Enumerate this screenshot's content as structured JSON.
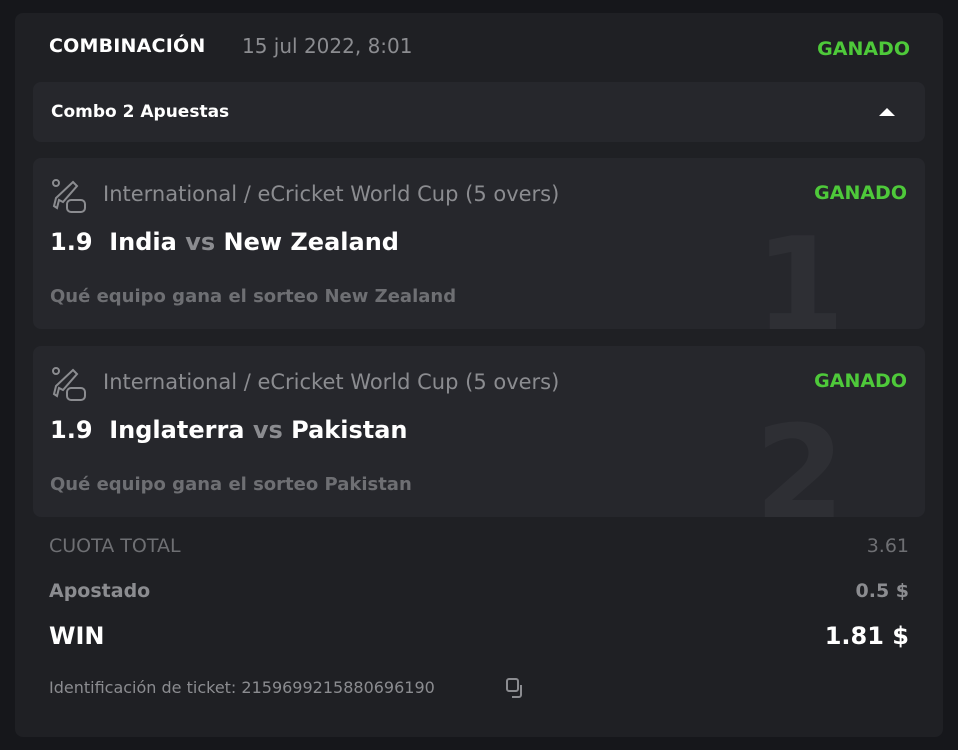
{
  "header": {
    "title": "COMBINACIÓN",
    "date": "15 jul 2022, 8:01",
    "status": "GANADO"
  },
  "combo": {
    "label": "Combo 2 Apuestas",
    "expanded": true
  },
  "legs": [
    {
      "number": "1",
      "league": "International / eCricket World Cup (5 overs)",
      "status": "GANADO",
      "odds": "1.9",
      "home": "India",
      "vs": "vs",
      "away": "New Zealand",
      "market": "Qué equipo gana el sorteo New Zealand",
      "icon": "ecricket-icon"
    },
    {
      "number": "2",
      "league": "International / eCricket World Cup (5 overs)",
      "status": "GANADO",
      "odds": "1.9",
      "home": "Inglaterra",
      "vs": "vs",
      "away": "Pakistan",
      "market": "Qué equipo gana el sorteo Pakistan",
      "icon": "ecricket-icon"
    }
  ],
  "summary": {
    "total_odds_label": "CUOTA TOTAL",
    "total_odds": "3.61",
    "staked_label": "Apostado",
    "staked": "0.5 $",
    "win_label": "WIN",
    "win": "1.81 $",
    "ticket_label": "Identificación de ticket: 2159699215880696190"
  },
  "colors": {
    "won": "#4ec93a",
    "card": "#1f2024",
    "panel": "#26272c"
  }
}
